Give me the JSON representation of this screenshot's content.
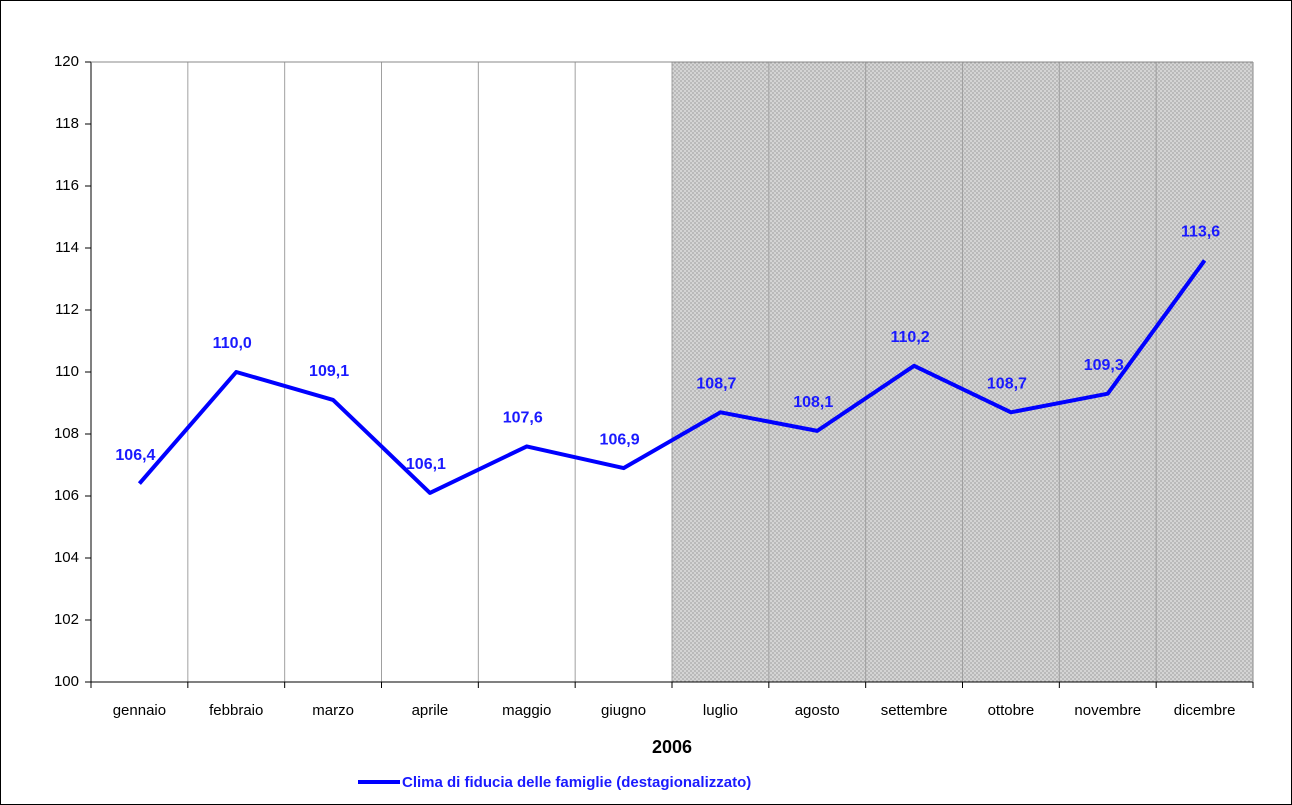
{
  "chart_data": {
    "type": "line",
    "xlabel": "2006",
    "categories": [
      "gennaio",
      "febbraio",
      "marzo",
      "aprile",
      "maggio",
      "giugno",
      "luglio",
      "agosto",
      "settembre",
      "ottobre",
      "novembre",
      "dicembre"
    ],
    "series": [
      {
        "name": "Clima di fiducia delle famiglie (destagionalizzato)",
        "color": "#0000ff",
        "values": [
          106.4,
          110.0,
          109.1,
          106.1,
          107.6,
          106.9,
          108.7,
          108.1,
          110.2,
          108.7,
          109.3,
          113.6
        ],
        "value_labels": [
          "106,4",
          "110,0",
          "109,1",
          "106,1",
          "107,6",
          "106,9",
          "108,7",
          "108,1",
          "110,2",
          "108,7",
          "109,3",
          "113,6"
        ]
      }
    ],
    "ylim": [
      100,
      120
    ],
    "yticks": [
      100,
      102,
      104,
      106,
      108,
      110,
      112,
      114,
      116,
      118,
      120
    ],
    "grid": true,
    "legend": "bottom"
  }
}
